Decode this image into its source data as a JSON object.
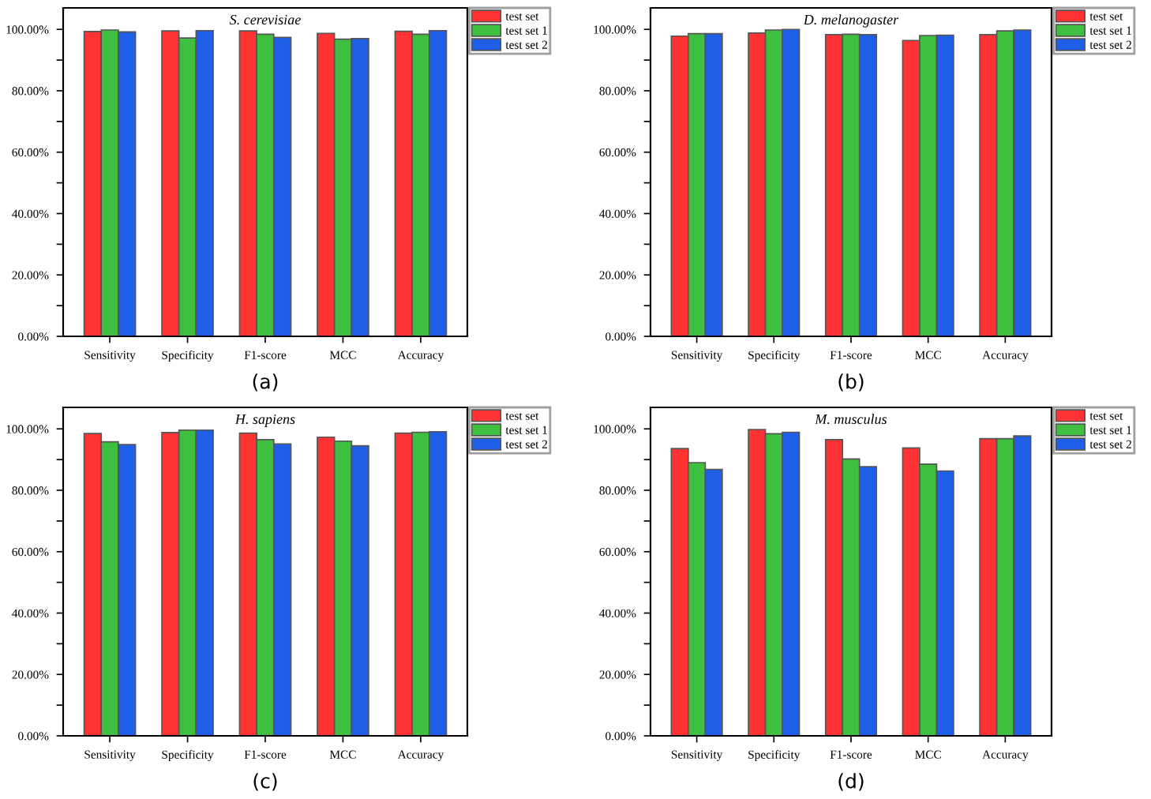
{
  "chart_data": [
    {
      "type": "bar",
      "title": "S. cerevisiae",
      "annotations": [
        "(a)"
      ],
      "categories": [
        "Sensitivity",
        "Specificity",
        "F1-score",
        "MCC",
        "Accuracy"
      ],
      "legend": "top right",
      "grid": false,
      "ylim": [
        0,
        107
      ],
      "yticks": [
        {
          "value": 0,
          "label": "0.00%"
        },
        {
          "value": 10,
          "label": null
        },
        {
          "value": 20,
          "label": "20.00%"
        },
        {
          "value": 30,
          "label": null
        },
        {
          "value": 40,
          "label": "40.00%"
        },
        {
          "value": 50,
          "label": null
        },
        {
          "value": 60,
          "label": "60.00%"
        },
        {
          "value": 70,
          "label": null
        },
        {
          "value": 80,
          "label": "80.00%"
        },
        {
          "value": 90,
          "label": null
        },
        {
          "value": 100,
          "label": "100.00%"
        }
      ],
      "series": [
        {
          "name": "test set",
          "color": "#ff3333",
          "values": [
            99.3,
            99.5,
            99.5,
            98.7,
            99.4
          ]
        },
        {
          "name": "test set 1",
          "color": "#3fbf3f",
          "values": [
            99.8,
            97.2,
            98.4,
            96.8,
            98.4
          ]
        },
        {
          "name": "test set 2",
          "color": "#1f5fe8",
          "values": [
            99.2,
            99.6,
            97.4,
            97.0,
            99.6
          ]
        }
      ]
    },
    {
      "type": "bar",
      "title": "D. melanogaster",
      "annotations": [
        "(b)"
      ],
      "categories": [
        "Sensitivity",
        "Specificity",
        "F1-score",
        "MCC",
        "Accuracy"
      ],
      "legend": "top right",
      "grid": false,
      "ylim": [
        0,
        107
      ],
      "yticks": [
        {
          "value": 0,
          "label": "0.00%"
        },
        {
          "value": 10,
          "label": null
        },
        {
          "value": 20,
          "label": "20.00%"
        },
        {
          "value": 30,
          "label": null
        },
        {
          "value": 40,
          "label": "40.00%"
        },
        {
          "value": 50,
          "label": null
        },
        {
          "value": 60,
          "label": "60.00%"
        },
        {
          "value": 70,
          "label": null
        },
        {
          "value": 80,
          "label": "80.00%"
        },
        {
          "value": 90,
          "label": null
        },
        {
          "value": 100,
          "label": "100.00%"
        }
      ],
      "series": [
        {
          "name": "test set",
          "color": "#ff3333",
          "values": [
            97.8,
            98.8,
            98.3,
            96.4,
            98.3
          ]
        },
        {
          "name": "test set 1",
          "color": "#3fbf3f",
          "values": [
            98.6,
            99.8,
            98.4,
            98.0,
            99.5
          ]
        },
        {
          "name": "test set 2",
          "color": "#1f5fe8",
          "values": [
            98.6,
            100.0,
            98.3,
            98.1,
            99.8
          ]
        }
      ]
    },
    {
      "type": "bar",
      "title": "H. sapiens",
      "annotations": [
        "(c)"
      ],
      "categories": [
        "Sensitivity",
        "Specificity",
        "F1-score",
        "MCC",
        "Accuracy"
      ],
      "legend": "top right",
      "grid": false,
      "ylim": [
        0,
        107
      ],
      "yticks": [
        {
          "value": 0,
          "label": "0.00%"
        },
        {
          "value": 10,
          "label": null
        },
        {
          "value": 20,
          "label": "20.00%"
        },
        {
          "value": 30,
          "label": null
        },
        {
          "value": 40,
          "label": "40.00%"
        },
        {
          "value": 50,
          "label": null
        },
        {
          "value": 60,
          "label": "60.00%"
        },
        {
          "value": 70,
          "label": null
        },
        {
          "value": 80,
          "label": "80.00%"
        },
        {
          "value": 90,
          "label": null
        },
        {
          "value": 100,
          "label": "100.00%"
        }
      ],
      "series": [
        {
          "name": "test set",
          "color": "#ff3333",
          "values": [
            98.5,
            98.8,
            98.6,
            97.3,
            98.6
          ]
        },
        {
          "name": "test set 1",
          "color": "#3fbf3f",
          "values": [
            95.8,
            99.6,
            96.5,
            96.0,
            98.9
          ]
        },
        {
          "name": "test set 2",
          "color": "#1f5fe8",
          "values": [
            94.9,
            99.6,
            95.1,
            94.5,
            99.1
          ]
        }
      ]
    },
    {
      "type": "bar",
      "title": "M. musculus",
      "annotations": [
        "(d)"
      ],
      "categories": [
        "Sensitivity",
        "Specificity",
        "F1-score",
        "MCC",
        "Accuracy"
      ],
      "legend": "top right",
      "grid": false,
      "ylim": [
        0,
        107
      ],
      "yticks": [
        {
          "value": 0,
          "label": "0.00%"
        },
        {
          "value": 10,
          "label": null
        },
        {
          "value": 20,
          "label": "20.00%"
        },
        {
          "value": 30,
          "label": null
        },
        {
          "value": 40,
          "label": "40.00%"
        },
        {
          "value": 50,
          "label": null
        },
        {
          "value": 60,
          "label": "60.00%"
        },
        {
          "value": 70,
          "label": null
        },
        {
          "value": 80,
          "label": "80.00%"
        },
        {
          "value": 90,
          "label": null
        },
        {
          "value": 100,
          "label": "100.00%"
        }
      ],
      "series": [
        {
          "name": "test set",
          "color": "#ff3333",
          "values": [
            93.6,
            99.8,
            96.5,
            93.8,
            96.8
          ]
        },
        {
          "name": "test set 1",
          "color": "#3fbf3f",
          "values": [
            89.0,
            98.4,
            90.2,
            88.5,
            96.8
          ]
        },
        {
          "name": "test set 2",
          "color": "#1f5fe8",
          "values": [
            86.8,
            98.9,
            87.7,
            86.3,
            97.7
          ]
        }
      ]
    }
  ]
}
